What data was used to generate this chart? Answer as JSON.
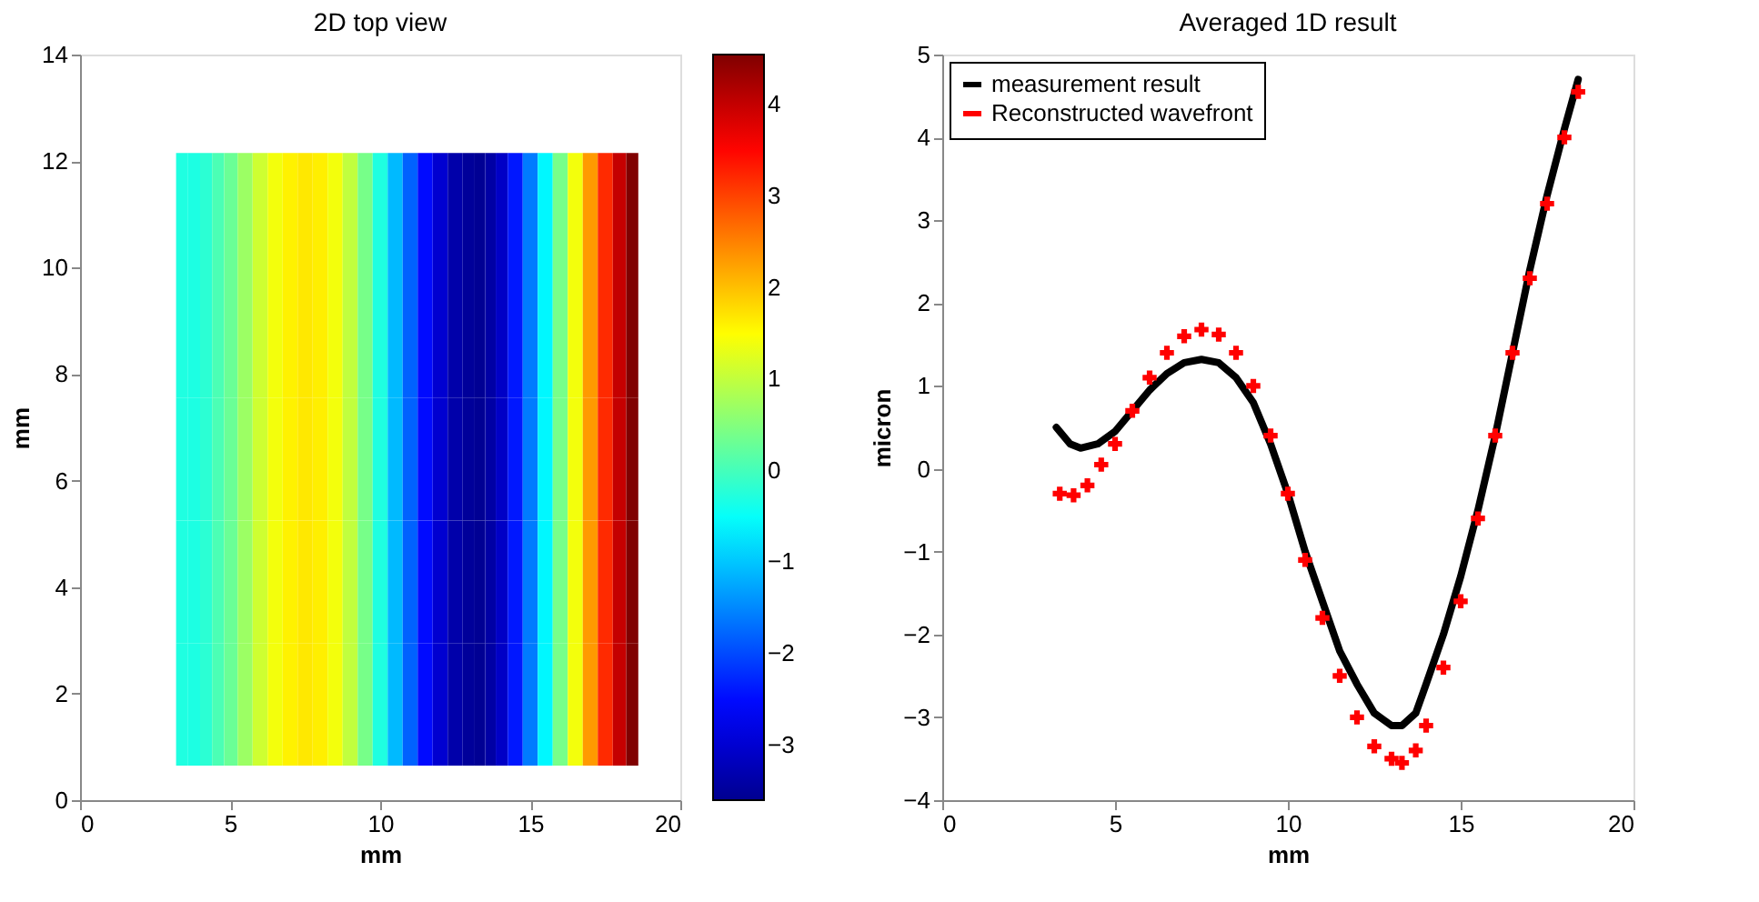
{
  "chart_data": [
    {
      "type": "heatmap",
      "title": "2D top view",
      "xlabel": "mm",
      "ylabel": "mm",
      "x": [
        3.4,
        3.8,
        4.2,
        4.6,
        5,
        5.5,
        6,
        6.5,
        7,
        7.5,
        8,
        8.5,
        9,
        9.5,
        10,
        10.5,
        11,
        11.5,
        12,
        12.5,
        13,
        13.3,
        13.7,
        14,
        14.5,
        15,
        15.5,
        16,
        16.5,
        17,
        17.5,
        18,
        18.4
      ],
      "y": [
        11.0,
        8.7,
        6.4,
        4.1,
        1.8
      ],
      "cells": [
        [
          -0.3,
          -0.32,
          -0.2,
          0.05,
          0.3,
          0.7,
          1.1,
          1.4,
          1.6,
          1.68,
          1.62,
          1.4,
          1.0,
          0.4,
          -0.3,
          -1.1,
          -1.8,
          -2.5,
          -3.0,
          -3.35,
          -3.5,
          -3.55,
          -3.4,
          -3.1,
          -2.4,
          -1.6,
          -0.6,
          0.4,
          1.4,
          2.3,
          3.2,
          4.0,
          4.55
        ],
        [
          -0.3,
          -0.32,
          -0.2,
          0.05,
          0.3,
          0.7,
          1.1,
          1.4,
          1.6,
          1.68,
          1.62,
          1.4,
          1.0,
          0.4,
          -0.3,
          -1.1,
          -1.8,
          -2.5,
          -3.0,
          -3.35,
          -3.5,
          -3.55,
          -3.4,
          -3.1,
          -2.4,
          -1.6,
          -0.6,
          0.4,
          1.4,
          2.3,
          3.2,
          4.0,
          4.55
        ],
        [
          -0.3,
          -0.32,
          -0.2,
          0.05,
          0.3,
          0.7,
          1.1,
          1.4,
          1.6,
          1.68,
          1.62,
          1.4,
          1.0,
          0.4,
          -0.3,
          -1.1,
          -1.8,
          -2.5,
          -3.0,
          -3.35,
          -3.5,
          -3.55,
          -3.4,
          -3.1,
          -2.4,
          -1.6,
          -0.6,
          0.4,
          1.4,
          2.3,
          3.2,
          4.0,
          4.55
        ],
        [
          -0.3,
          -0.32,
          -0.2,
          0.05,
          0.3,
          0.7,
          1.1,
          1.4,
          1.6,
          1.68,
          1.62,
          1.4,
          1.0,
          0.4,
          -0.3,
          -1.1,
          -1.8,
          -2.5,
          -3.0,
          -3.35,
          -3.5,
          -3.55,
          -3.4,
          -3.1,
          -2.4,
          -1.6,
          -0.6,
          0.4,
          1.4,
          2.3,
          3.2,
          4.0,
          4.55
        ],
        [
          -0.3,
          -0.32,
          -0.2,
          0.05,
          0.3,
          0.7,
          1.1,
          1.4,
          1.6,
          1.68,
          1.62,
          1.4,
          1.0,
          0.4,
          -0.3,
          -1.1,
          -1.8,
          -2.5,
          -3.0,
          -3.35,
          -3.5,
          -3.55,
          -3.4,
          -3.1,
          -2.4,
          -1.6,
          -0.6,
          0.4,
          1.4,
          2.3,
          3.2,
          4.0,
          4.55
        ]
      ],
      "xlim": [
        0,
        20
      ],
      "xticks": [
        0,
        5,
        10,
        15,
        20
      ],
      "ylim": [
        0,
        14
      ],
      "yticks": [
        0,
        2,
        4,
        6,
        8,
        10,
        12,
        14
      ],
      "clim": [
        -3.6,
        4.55
      ],
      "cticks": [
        -3,
        -2,
        -1,
        0,
        1,
        2,
        3,
        4
      ],
      "grid": false
    },
    {
      "type": "line",
      "title": "Averaged 1D result",
      "xlabel": "mm",
      "ylabel": "micron",
      "xlim": [
        0,
        20
      ],
      "xticks": [
        0,
        5,
        10,
        15,
        20
      ],
      "ylim": [
        -4,
        5
      ],
      "yticks": [
        -4,
        -3,
        -2,
        -1,
        0,
        1,
        2,
        3,
        4,
        5
      ],
      "grid": false,
      "legend": "top left",
      "series": [
        {
          "name": "measurement result",
          "type": "line",
          "color": "#000000",
          "marker": "none",
          "line_style": "solid",
          "x": [
            3.3,
            3.7,
            4,
            4.5,
            5,
            5.5,
            6,
            6.5,
            7,
            7.5,
            8,
            8.5,
            9,
            9.5,
            10,
            10.5,
            11,
            11.5,
            12,
            12.5,
            13,
            13.3,
            13.7,
            14,
            14.5,
            15,
            15.5,
            16,
            16.5,
            17,
            17.5,
            18,
            18.4
          ],
          "values": [
            0.5,
            0.3,
            0.25,
            0.3,
            0.45,
            0.7,
            0.95,
            1.15,
            1.28,
            1.32,
            1.28,
            1.1,
            0.8,
            0.3,
            -0.3,
            -1.0,
            -1.6,
            -2.2,
            -2.6,
            -2.95,
            -3.1,
            -3.1,
            -2.95,
            -2.6,
            -2.0,
            -1.3,
            -0.5,
            0.4,
            1.4,
            2.4,
            3.3,
            4.1,
            4.7
          ]
        },
        {
          "name": "Reconstructed wavefront",
          "type": "scatter",
          "color": "#ff0000",
          "marker": "cross",
          "x": [
            3.4,
            3.8,
            4.2,
            4.6,
            5,
            5.5,
            6,
            6.5,
            7,
            7.5,
            8,
            8.5,
            9,
            9.5,
            10,
            10.5,
            11,
            11.5,
            12,
            12.5,
            13,
            13.3,
            13.7,
            14,
            14.5,
            15,
            15.5,
            16,
            16.5,
            17,
            17.5,
            18,
            18.4
          ],
          "values": [
            -0.3,
            -0.32,
            -0.2,
            0.05,
            0.3,
            0.7,
            1.1,
            1.4,
            1.6,
            1.68,
            1.62,
            1.4,
            1.0,
            0.4,
            -0.3,
            -1.1,
            -1.8,
            -2.5,
            -3.0,
            -3.35,
            -3.5,
            -3.55,
            -3.4,
            -3.1,
            -2.4,
            -1.6,
            -0.6,
            0.4,
            1.4,
            2.3,
            3.2,
            4.0,
            4.55
          ]
        }
      ]
    }
  ]
}
